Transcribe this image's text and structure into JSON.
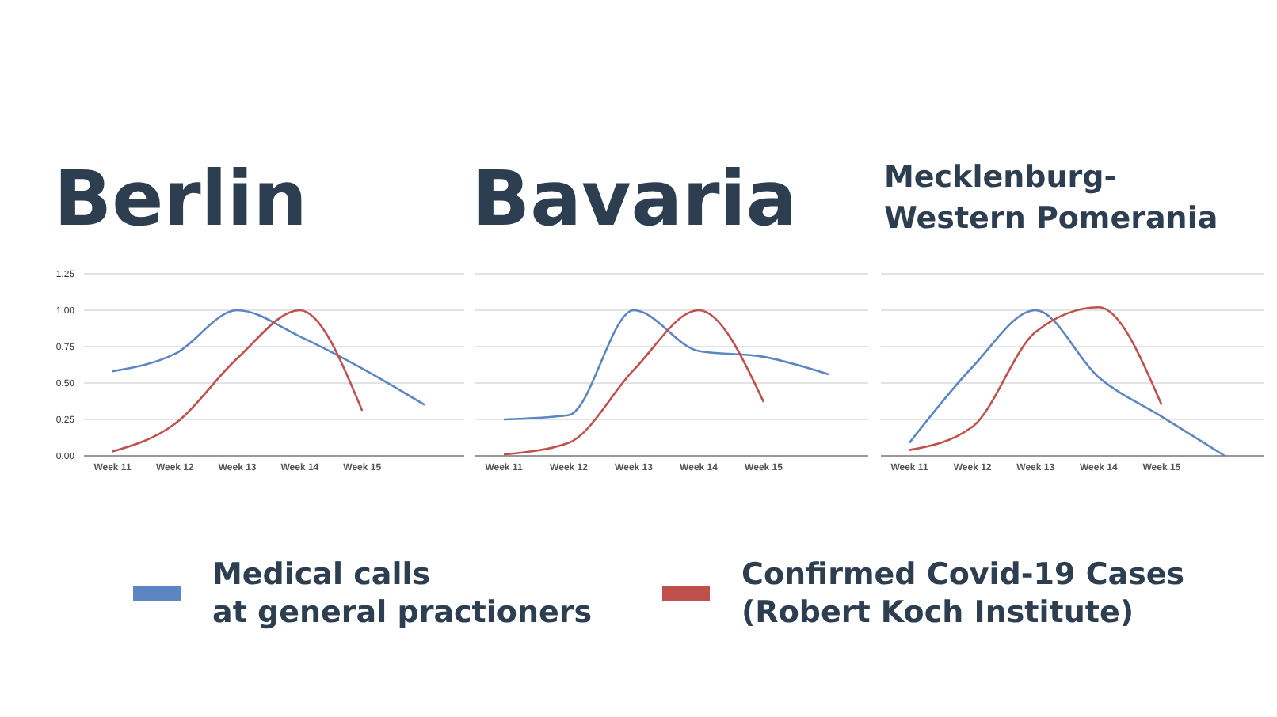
{
  "chart_data": [
    {
      "type": "line",
      "title": "Berlin",
      "categories": [
        "Week 11",
        "Week 12",
        "Week 13",
        "Week 14",
        "Week 15",
        null
      ],
      "ylim": [
        0,
        1.25
      ],
      "yticks": [
        {
          "value": 0,
          "label": "0.00"
        },
        {
          "value": 0.25,
          "label": "0.25"
        },
        {
          "value": 0.5,
          "label": "0.50"
        },
        {
          "value": 0.75,
          "label": "0.75"
        },
        {
          "value": 1,
          "label": "1.00"
        },
        {
          "value": 1.25,
          "label": "1.25"
        }
      ],
      "grid": "y",
      "legend": "bottom",
      "marker": "none",
      "series": [
        {
          "name": "Medical calls at general practioners",
          "color": "#5b86c2",
          "values": [
            0.58,
            0.7,
            1.0,
            0.82,
            0.6,
            0.35
          ]
        },
        {
          "name": "Confirmed Covid-19 Cases (Robert Koch Institute)",
          "color": "#c0504d",
          "values": [
            0.03,
            0.22,
            0.67,
            1.0,
            0.31,
            null
          ]
        }
      ]
    },
    {
      "type": "line",
      "title": "Bavaria",
      "categories": [
        "Week 11",
        "Week 12",
        "Week 13",
        "Week 14",
        "Week 15",
        null
      ],
      "ylim": [
        0,
        1.25
      ],
      "yticks": [
        {
          "value": 0,
          "label": null
        },
        {
          "value": 0.25,
          "label": null
        },
        {
          "value": 0.5,
          "label": null
        },
        {
          "value": 0.75,
          "label": null
        },
        {
          "value": 1,
          "label": null
        },
        {
          "value": 1.25,
          "label": null
        }
      ],
      "grid": "y",
      "tick_labels": "x",
      "marker": "none",
      "series": [
        {
          "color": "#5b86c2",
          "values": [
            0.25,
            0.28,
            1.0,
            0.72,
            0.68,
            0.56
          ]
        },
        {
          "color": "#c0504d",
          "values": [
            0.01,
            0.09,
            0.59,
            1.0,
            0.37,
            null
          ]
        }
      ]
    },
    {
      "type": "line",
      "title": "Mecklenburg-Western Pomerania",
      "categories": [
        "Week 11",
        "Week 12",
        "Week 13",
        "Week 14",
        "Week 15",
        null
      ],
      "ylim": [
        0,
        1.25
      ],
      "yticks": [
        {
          "value": 0,
          "label": null
        },
        {
          "value": 0.25,
          "label": null
        },
        {
          "value": 0.5,
          "label": null
        },
        {
          "value": 0.75,
          "label": null
        },
        {
          "value": 1,
          "label": null
        },
        {
          "value": 1.25,
          "label": null
        }
      ],
      "grid": "y",
      "tick_labels": "x",
      "marker": "none",
      "series": [
        {
          "color": "#5b86c2",
          "values": [
            0.09,
            0.61,
            1.0,
            0.54,
            0.27,
            0.0
          ]
        },
        {
          "color": "#c0504d",
          "values": [
            0.04,
            0.2,
            0.85,
            1.02,
            0.35,
            null
          ]
        }
      ]
    }
  ]
}
